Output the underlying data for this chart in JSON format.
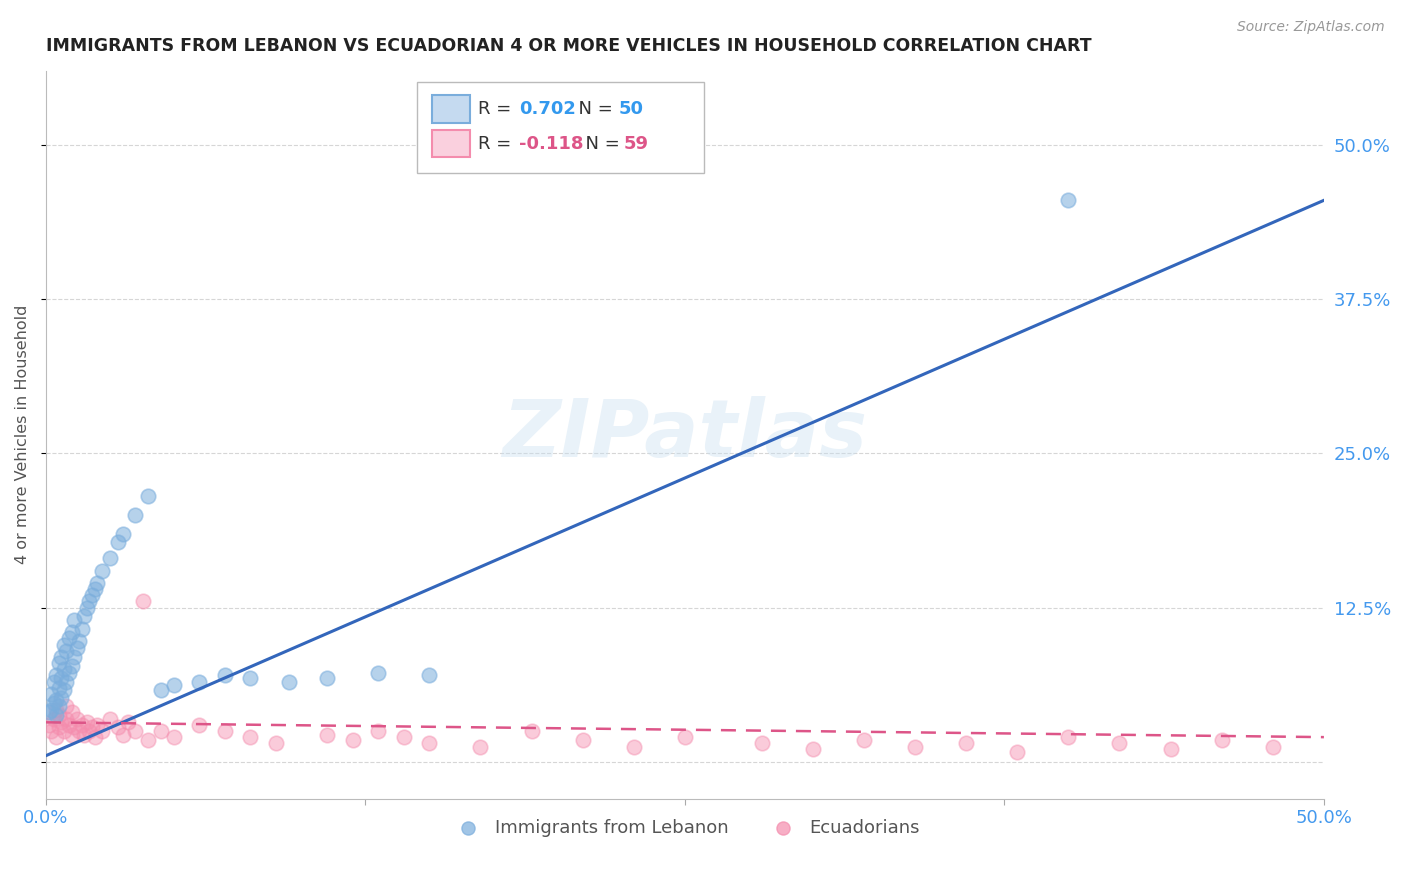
{
  "title": "IMMIGRANTS FROM LEBANON VS ECUADORIAN 4 OR MORE VEHICLES IN HOUSEHOLD CORRELATION CHART",
  "source": "Source: ZipAtlas.com",
  "ylabel": "4 or more Vehicles in Household",
  "xlim": [
    0.0,
    0.5
  ],
  "ylim": [
    -0.03,
    0.56
  ],
  "blue_R": 0.702,
  "blue_N": 50,
  "pink_R": -0.118,
  "pink_N": 59,
  "legend_label_blue": "Immigrants from Lebanon",
  "legend_label_pink": "Ecuadorians",
  "watermark": "ZIPatlas",
  "blue_color": "#7aaddc",
  "pink_color": "#f48cad",
  "blue_line_color": "#3366bb",
  "pink_line_color": "#dd5588",
  "background_color": "#ffffff",
  "grid_color": "#cccccc",
  "title_color": "#222222",
  "source_color": "#999999",
  "axis_label_color": "#555555",
  "tick_color": "#4499ee",
  "blue_x": [
    0.001,
    0.002,
    0.002,
    0.003,
    0.003,
    0.004,
    0.004,
    0.004,
    0.005,
    0.005,
    0.005,
    0.006,
    0.006,
    0.006,
    0.007,
    0.007,
    0.007,
    0.008,
    0.008,
    0.009,
    0.009,
    0.01,
    0.01,
    0.011,
    0.011,
    0.012,
    0.013,
    0.014,
    0.015,
    0.016,
    0.017,
    0.018,
    0.019,
    0.02,
    0.022,
    0.025,
    0.028,
    0.03,
    0.035,
    0.04,
    0.045,
    0.05,
    0.06,
    0.07,
    0.08,
    0.095,
    0.11,
    0.13,
    0.15,
    0.4
  ],
  "blue_y": [
    0.04,
    0.042,
    0.055,
    0.048,
    0.065,
    0.038,
    0.05,
    0.07,
    0.045,
    0.06,
    0.08,
    0.052,
    0.068,
    0.085,
    0.058,
    0.075,
    0.095,
    0.065,
    0.09,
    0.072,
    0.1,
    0.078,
    0.105,
    0.085,
    0.115,
    0.092,
    0.098,
    0.108,
    0.118,
    0.125,
    0.13,
    0.135,
    0.14,
    0.145,
    0.155,
    0.165,
    0.178,
    0.185,
    0.2,
    0.215,
    0.058,
    0.062,
    0.065,
    0.07,
    0.068,
    0.065,
    0.068,
    0.072,
    0.07,
    0.455
  ],
  "pink_x": [
    0.001,
    0.002,
    0.003,
    0.004,
    0.004,
    0.005,
    0.005,
    0.006,
    0.007,
    0.008,
    0.008,
    0.009,
    0.01,
    0.01,
    0.011,
    0.012,
    0.013,
    0.014,
    0.015,
    0.016,
    0.017,
    0.018,
    0.019,
    0.02,
    0.022,
    0.025,
    0.028,
    0.03,
    0.032,
    0.035,
    0.038,
    0.04,
    0.045,
    0.05,
    0.06,
    0.07,
    0.08,
    0.09,
    0.11,
    0.12,
    0.13,
    0.14,
    0.15,
    0.17,
    0.19,
    0.21,
    0.23,
    0.25,
    0.28,
    0.3,
    0.32,
    0.34,
    0.36,
    0.38,
    0.4,
    0.42,
    0.44,
    0.46,
    0.48
  ],
  "pink_y": [
    0.03,
    0.025,
    0.035,
    0.02,
    0.042,
    0.028,
    0.038,
    0.032,
    0.025,
    0.035,
    0.045,
    0.03,
    0.022,
    0.04,
    0.028,
    0.035,
    0.025,
    0.03,
    0.022,
    0.032,
    0.025,
    0.028,
    0.02,
    0.03,
    0.025,
    0.035,
    0.028,
    0.022,
    0.032,
    0.025,
    0.13,
    0.018,
    0.025,
    0.02,
    0.03,
    0.025,
    0.02,
    0.015,
    0.022,
    0.018,
    0.025,
    0.02,
    0.015,
    0.012,
    0.025,
    0.018,
    0.012,
    0.02,
    0.015,
    0.01,
    0.018,
    0.012,
    0.015,
    0.008,
    0.02,
    0.015,
    0.01,
    0.018,
    0.012
  ],
  "blue_line_x": [
    0.0,
    0.5
  ],
  "blue_line_y": [
    0.005,
    0.455
  ],
  "pink_line_x": [
    0.0,
    0.5
  ],
  "pink_line_y": [
    0.032,
    0.02
  ]
}
